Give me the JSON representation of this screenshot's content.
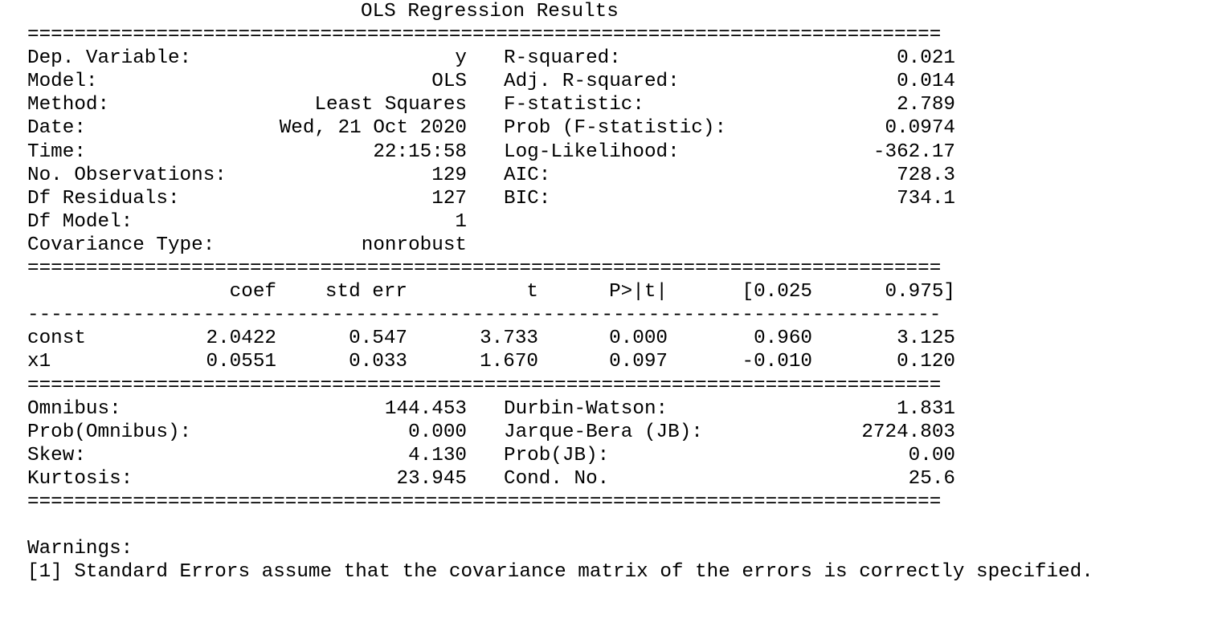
{
  "title": "OLS Regression Results",
  "rule_double": "==============================================================================",
  "rule_single": "------------------------------------------------------------------------------",
  "summary_left": [
    {
      "label": "Dep. Variable:",
      "value": "y"
    },
    {
      "label": "Model:",
      "value": "OLS"
    },
    {
      "label": "Method:",
      "value": "Least Squares"
    },
    {
      "label": "Date:",
      "value": "Wed, 21 Oct 2020"
    },
    {
      "label": "Time:",
      "value": "22:15:58"
    },
    {
      "label": "No. Observations:",
      "value": "129"
    },
    {
      "label": "Df Residuals:",
      "value": "127"
    },
    {
      "label": "Df Model:",
      "value": "1"
    },
    {
      "label": "Covariance Type:",
      "value": "nonrobust"
    }
  ],
  "summary_right": [
    {
      "label": "R-squared:",
      "value": "0.021"
    },
    {
      "label": "Adj. R-squared:",
      "value": "0.014"
    },
    {
      "label": "F-statistic:",
      "value": "2.789"
    },
    {
      "label": "Prob (F-statistic):",
      "value": "0.0974"
    },
    {
      "label": "Log-Likelihood:",
      "value": "-362.17"
    },
    {
      "label": "AIC:",
      "value": "728.3"
    },
    {
      "label": "BIC:",
      "value": "734.1"
    }
  ],
  "coef_table": {
    "headers": [
      "coef",
      "std err",
      "t",
      "P>|t|",
      "[0.025",
      "0.975]"
    ],
    "rows": [
      {
        "name": "const",
        "values": [
          "2.0422",
          "0.547",
          "3.733",
          "0.000",
          "0.960",
          "3.125"
        ]
      },
      {
        "name": "x1",
        "values": [
          "0.0551",
          "0.033",
          "1.670",
          "0.097",
          "-0.010",
          "0.120"
        ]
      }
    ]
  },
  "diagnostics_left": [
    {
      "label": "Omnibus:",
      "value": "144.453"
    },
    {
      "label": "Prob(Omnibus):",
      "value": "0.000"
    },
    {
      "label": "Skew:",
      "value": "4.130"
    },
    {
      "label": "Kurtosis:",
      "value": "23.945"
    }
  ],
  "diagnostics_right": [
    {
      "label": "Durbin-Watson:",
      "value": "1.831"
    },
    {
      "label": "Jarque-Bera (JB):",
      "value": "2724.803"
    },
    {
      "label": "Prob(JB):",
      "value": "0.00"
    },
    {
      "label": "Cond. No.",
      "value": "25.6"
    }
  ],
  "warnings": {
    "heading": "Warnings:",
    "items": [
      "[1] Standard Errors assume that the covariance matrix of the errors is correctly specified."
    ]
  }
}
